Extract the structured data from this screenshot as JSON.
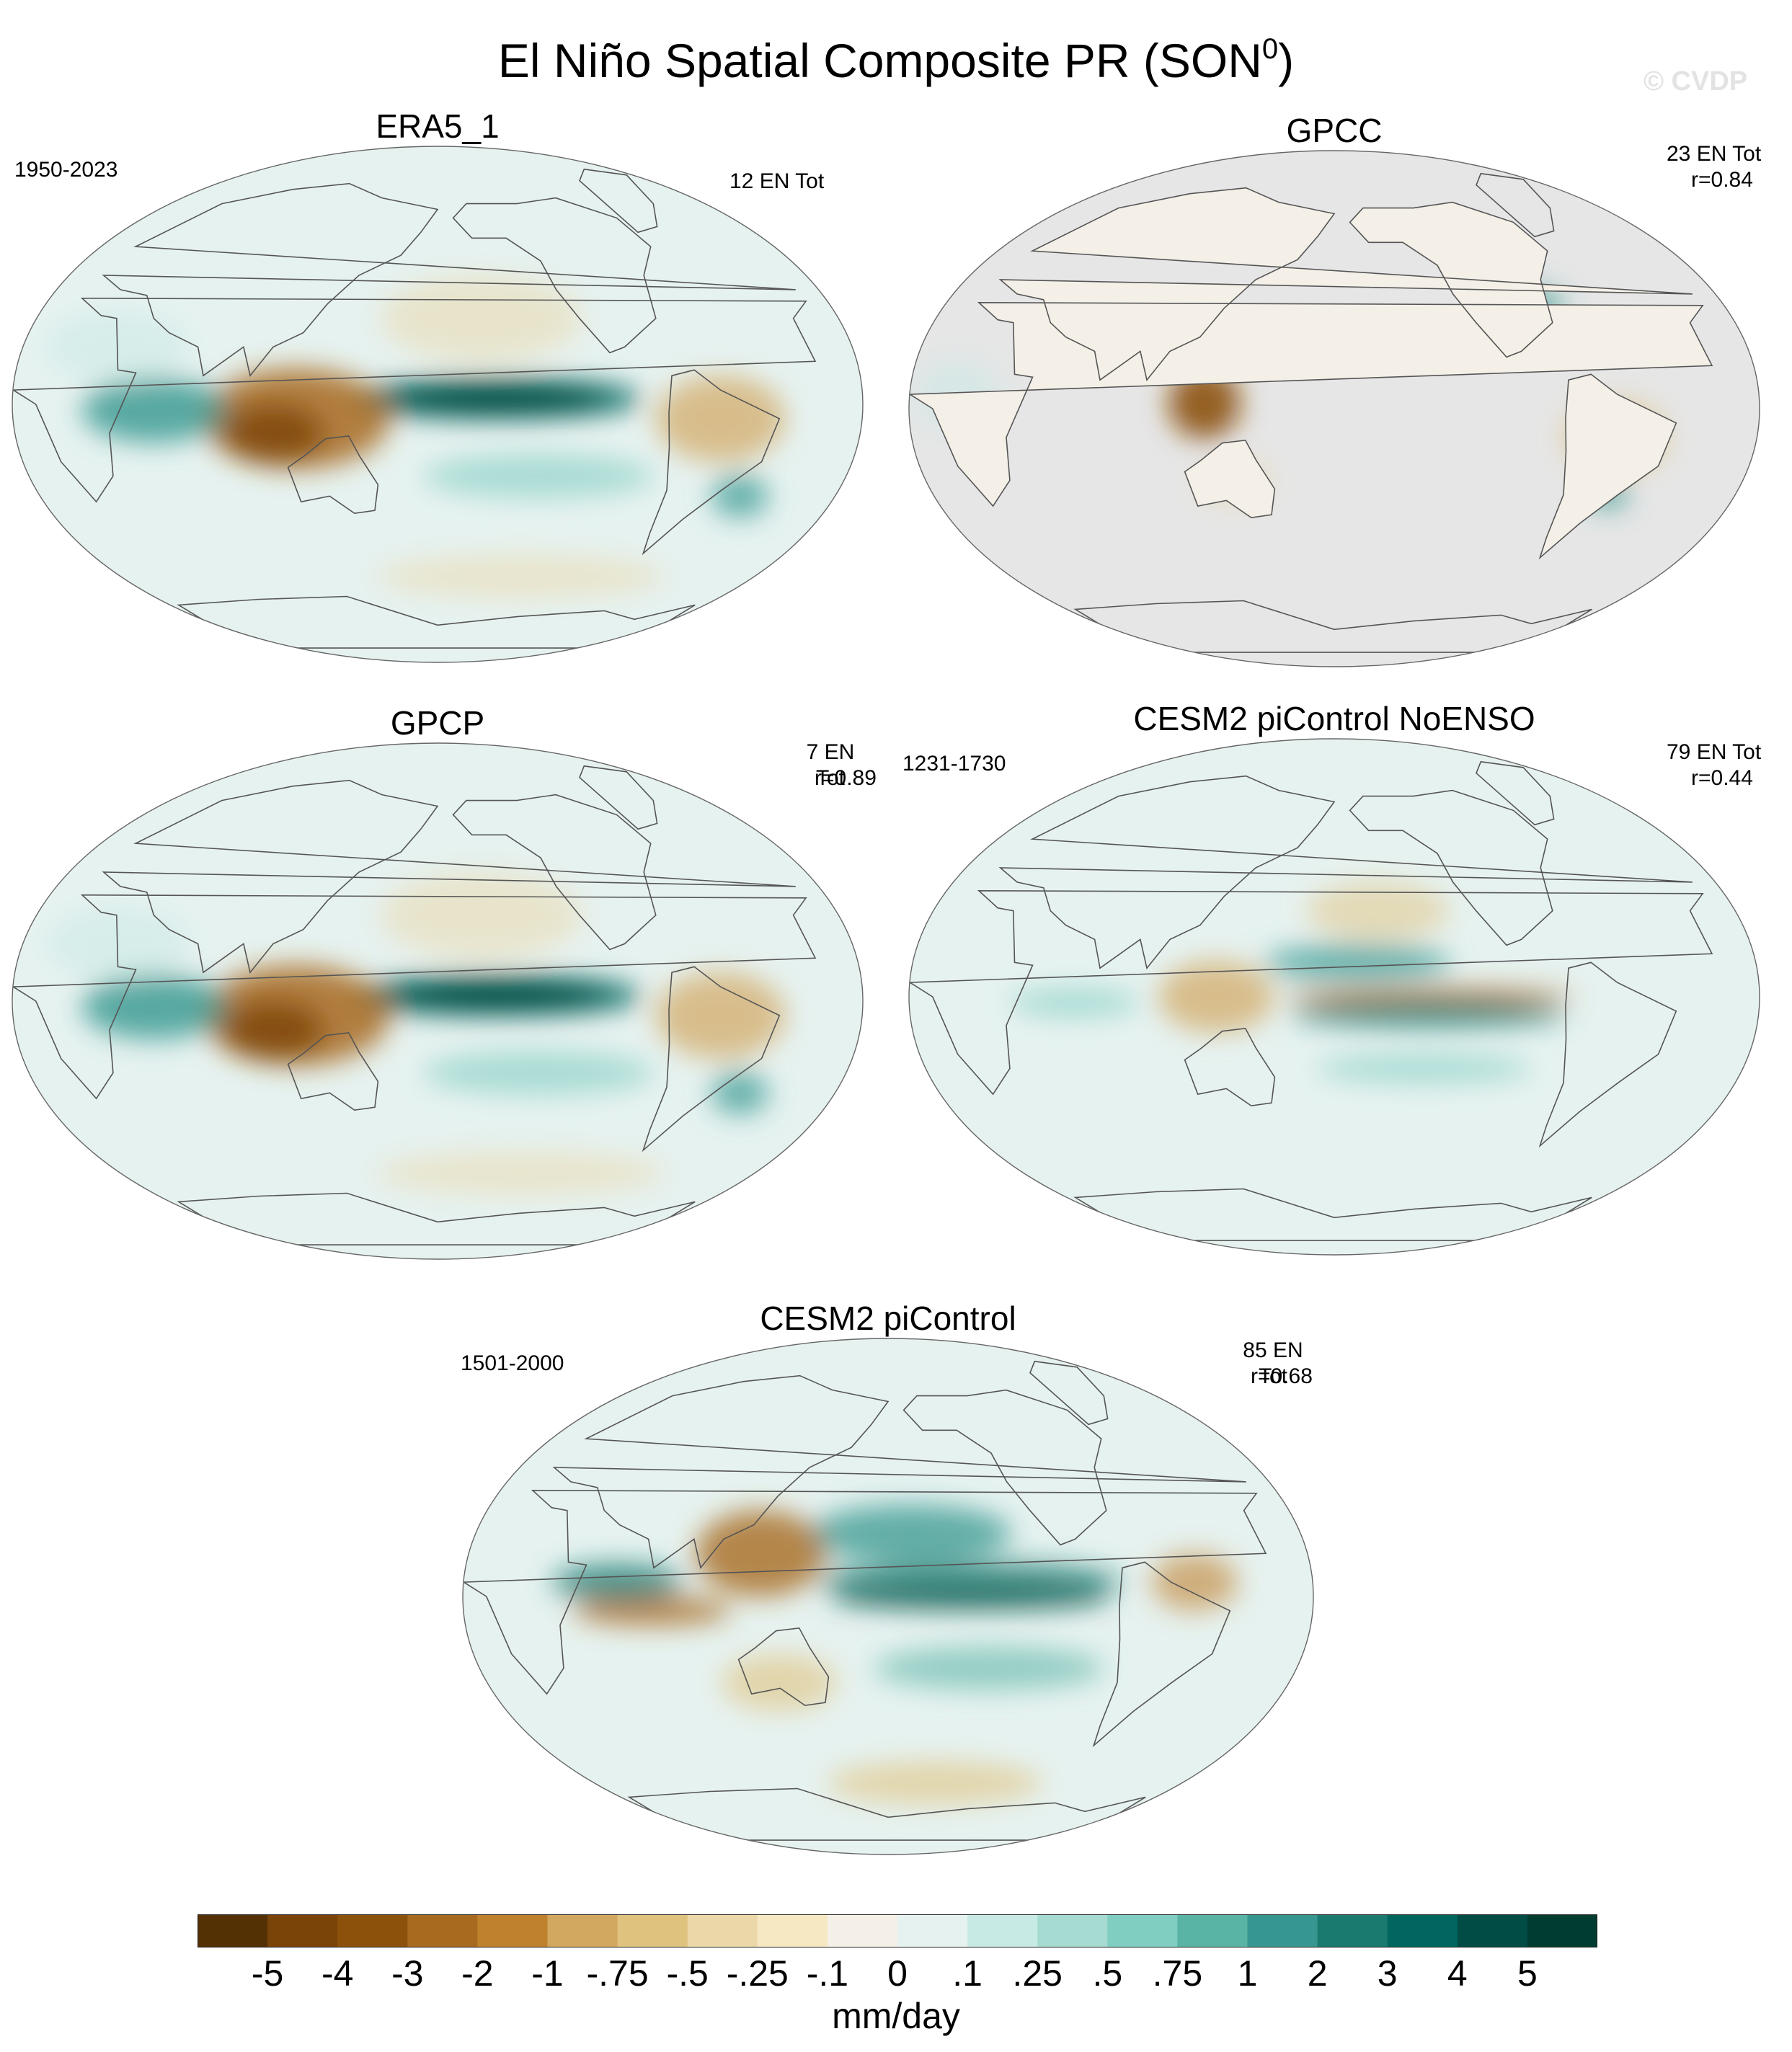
{
  "figure": {
    "title": "El Niño Spatial Composite PR (SON",
    "title_sup": "0",
    "title_close": ")",
    "watermark": "© CVDP"
  },
  "panels": [
    {
      "id": "era5",
      "title": "ERA5_1",
      "period": "1950-2023",
      "count": "12 EN Tot",
      "corr": "",
      "land_only": false,
      "pattern": "obs_strong"
    },
    {
      "id": "gpcc",
      "title": "GPCC",
      "period": "",
      "count": "23 EN Tot",
      "corr": "r=0.84",
      "land_only": true,
      "pattern": "land"
    },
    {
      "id": "gpcp",
      "title": "GPCP",
      "period": "",
      "count": "7 EN Tot",
      "corr": "r=0.89",
      "land_only": false,
      "pattern": "obs_strong"
    },
    {
      "id": "noenso",
      "title": "CESM2 piControl NoENSO",
      "period": "1231-1730",
      "count": "79 EN Tot",
      "corr": "r=0.44",
      "land_only": false,
      "pattern": "weak"
    },
    {
      "id": "picontrol",
      "title": "CESM2 piControl",
      "period": "1501-2000",
      "count": "85 EN Tot",
      "corr": "r=0.68",
      "land_only": false,
      "pattern": "model_strong"
    }
  ],
  "colorbar": {
    "units": "mm/day",
    "labels": [
      "-5",
      "-4",
      "-3",
      "-2",
      "-1",
      "-.75",
      "-.5",
      "-.25",
      "-.1",
      "0",
      ".1",
      ".25",
      ".5",
      ".75",
      "1",
      "2",
      "3",
      "4",
      "5"
    ],
    "colors": [
      "#543005",
      "#7a4308",
      "#8c510a",
      "#a86a1e",
      "#bf812d",
      "#d2a760",
      "#dfc27d",
      "#ecd7a8",
      "#f6e8c3",
      "#f4f0e8",
      "#e6f2f0",
      "#c7eae5",
      "#a6dbd2",
      "#80cdc1",
      "#5ab4a5",
      "#35978f",
      "#1a7a70",
      "#01665e",
      "#014d45",
      "#003c30"
    ],
    "land_missing_color": "#e6e6e6"
  }
}
